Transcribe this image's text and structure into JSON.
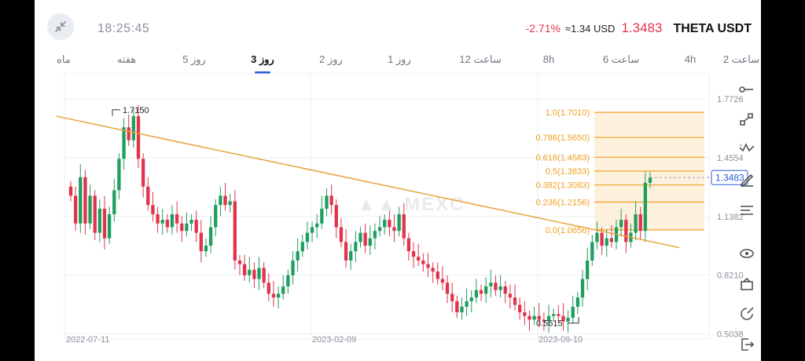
{
  "header": {
    "time": "18:25:45",
    "change_pct": "-2.71%",
    "usd_value": "≈1.34 USD",
    "last_price": "1.3483",
    "symbol": "THETA USDT"
  },
  "tabs": [
    "ماه",
    "هفته",
    "5 روز",
    "3 روز",
    "2 روز",
    "1 روز",
    "12 ساعت",
    "8h",
    "6 ساعت",
    "4h",
    "2 ساعت"
  ],
  "active_tab": "3 روز",
  "icons": [
    "collapse-icon",
    "line-tool-icon",
    "path-tool-icon",
    "trend-tool-icon",
    "brush-icon",
    "indicators-icon",
    "eye-icon",
    "layers-icon",
    "share-icon",
    "exit-icon"
  ],
  "colors": {
    "up": "#1e9e60",
    "down": "#e0344c",
    "trendline": "#e8a33a",
    "fib": "#f0a020",
    "fib_fill": "#fdf1de"
  },
  "chart_data": {
    "type": "candlestick",
    "watermark": "MEXC",
    "x_ticks": [
      "2022-07-11",
      "2023-02-09",
      "2023-09-10"
    ],
    "y_ticks": [
      "1.7726",
      "1.4554",
      "1.1382",
      "0.8210",
      "0.5038"
    ],
    "ylim": [
      0.45,
      1.85
    ],
    "last_price_label": "1.3483",
    "high_label": "1.7150",
    "low_label": "0.5615",
    "fib_levels": [
      {
        "label": "1.0(1.7010)",
        "value": 1.701
      },
      {
        "label": "0.786(1.5650)",
        "value": 1.565
      },
      {
        "label": "0.618(1.4583)",
        "value": 1.4583
      },
      {
        "label": "0.5(1.3833)",
        "value": 1.3833
      },
      {
        "label": "0.382(1.3083)",
        "value": 1.3083
      },
      {
        "label": "0.236(1.2156)",
        "value": 1.2156
      },
      {
        "label": "0.0(1.0656)",
        "value": 1.0656
      }
    ],
    "close": [
      1.25,
      1.1,
      1.35,
      1.1,
      1.25,
      1.05,
      1.18,
      1.02,
      1.15,
      1.28,
      1.45,
      1.62,
      1.55,
      1.68,
      1.45,
      1.3,
      1.2,
      1.15,
      1.1,
      1.12,
      1.08,
      1.15,
      1.1,
      1.06,
      1.1,
      1.12,
      1.05,
      0.95,
      0.98,
      1.08,
      1.2,
      1.25,
      1.2,
      1.22,
      0.9,
      0.88,
      0.82,
      0.85,
      0.8,
      0.86,
      0.78,
      0.72,
      0.7,
      0.72,
      0.76,
      0.82,
      0.9,
      0.95,
      1.0,
      1.05,
      1.08,
      1.1,
      1.18,
      1.25,
      1.2,
      1.08,
      1.0,
      0.9,
      0.95,
      1.0,
      1.05,
      0.98,
      1.02,
      1.06,
      1.08,
      1.12,
      1.08,
      1.06,
      1.15,
      1.02,
      0.95,
      0.92,
      0.9,
      0.88,
      0.86,
      0.84,
      0.8,
      0.78,
      0.72,
      0.68,
      0.62,
      0.65,
      0.68,
      0.7,
      0.74,
      0.72,
      0.76,
      0.78,
      0.74,
      0.76,
      0.72,
      0.7,
      0.66,
      0.62,
      0.6,
      0.58,
      0.6,
      0.58,
      0.57,
      0.6,
      0.61,
      0.6,
      0.57,
      0.59,
      0.65,
      0.7,
      0.8,
      0.9,
      1.0,
      1.05,
      0.98,
      1.02,
      1.0,
      1.08,
      1.12,
      1.0,
      1.05,
      1.15,
      1.06,
      1.32,
      1.3483
    ],
    "trendline": {
      "from": {
        "index": -3,
        "value": 1.68
      },
      "to": {
        "index": 126,
        "value": 0.97
      }
    }
  }
}
